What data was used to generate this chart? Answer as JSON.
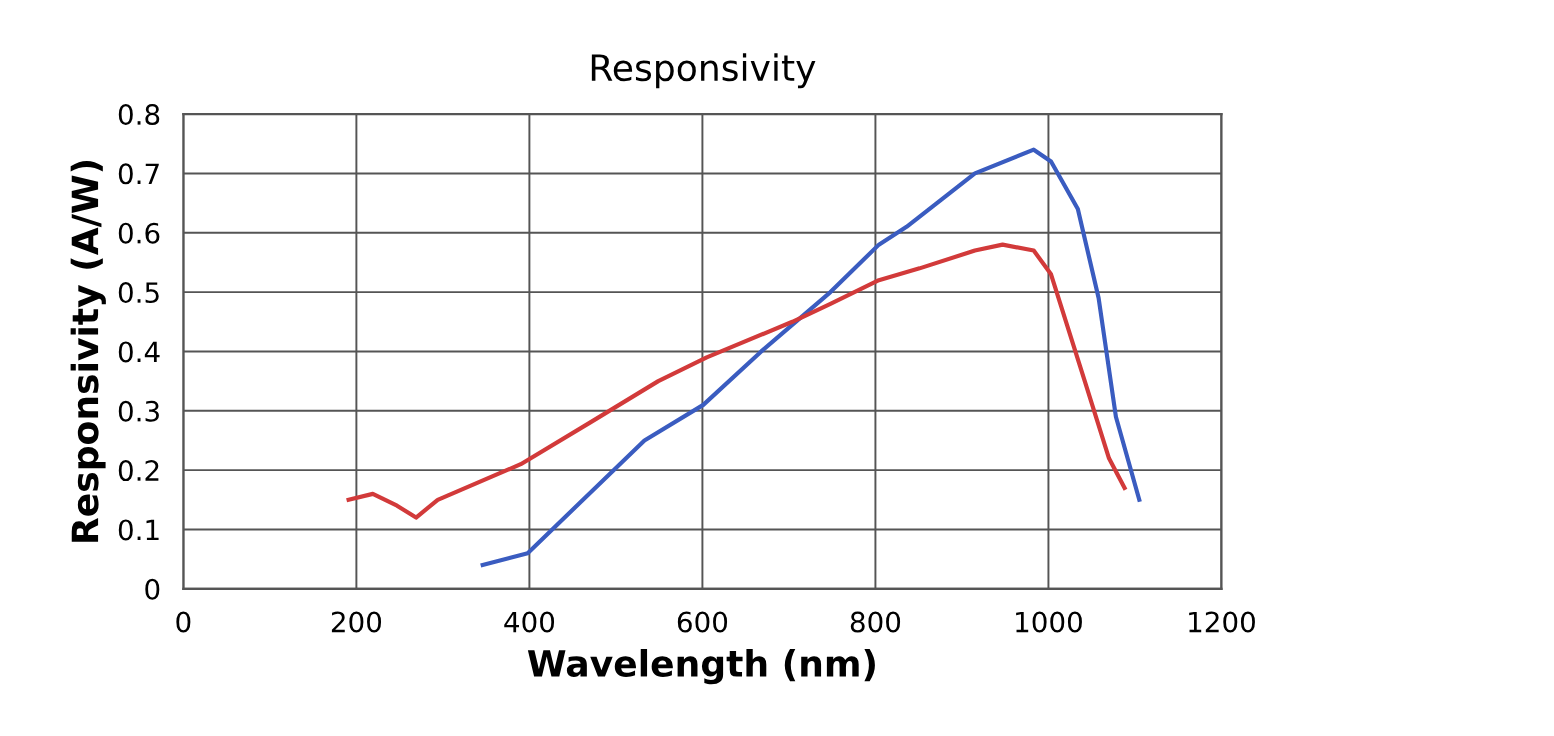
{
  "chart_data": {
    "type": "line",
    "title": "Responsivity",
    "xlabel": "Wavelength (nm)",
    "ylabel": "Responsivity (A/W)",
    "xlim": [
      0,
      1200
    ],
    "xticks": [
      0,
      200,
      400,
      600,
      800,
      1000,
      1200
    ],
    "ylim": [
      0,
      0.8
    ],
    "yticks": [
      0,
      0.1,
      0.2,
      0.3,
      0.4,
      0.5,
      0.6,
      0.7,
      0.8
    ],
    "grid": true,
    "series": [
      {
        "color": "#3a5cc0",
        "x": [
          346,
          398,
          533,
          601,
          668,
          748,
          804,
          836,
          915,
          983,
          1003,
          1034,
          1058,
          1078,
          1105
        ],
        "values": [
          0.04,
          0.06,
          0.25,
          0.31,
          0.4,
          0.5,
          0.58,
          0.61,
          0.7,
          0.74,
          0.72,
          0.64,
          0.49,
          0.29,
          0.15
        ]
      },
      {
        "color": "#d23a3a",
        "x": [
          191,
          219,
          247,
          269,
          294,
          390,
          470,
          549,
          605,
          704,
          748,
          804,
          851,
          915,
          947,
          983,
          1003,
          1042,
          1070,
          1088
        ],
        "values": [
          0.15,
          0.16,
          0.14,
          0.12,
          0.15,
          0.21,
          0.28,
          0.35,
          0.39,
          0.45,
          0.48,
          0.52,
          0.54,
          0.57,
          0.58,
          0.57,
          0.53,
          0.35,
          0.22,
          0.17
        ]
      }
    ]
  }
}
